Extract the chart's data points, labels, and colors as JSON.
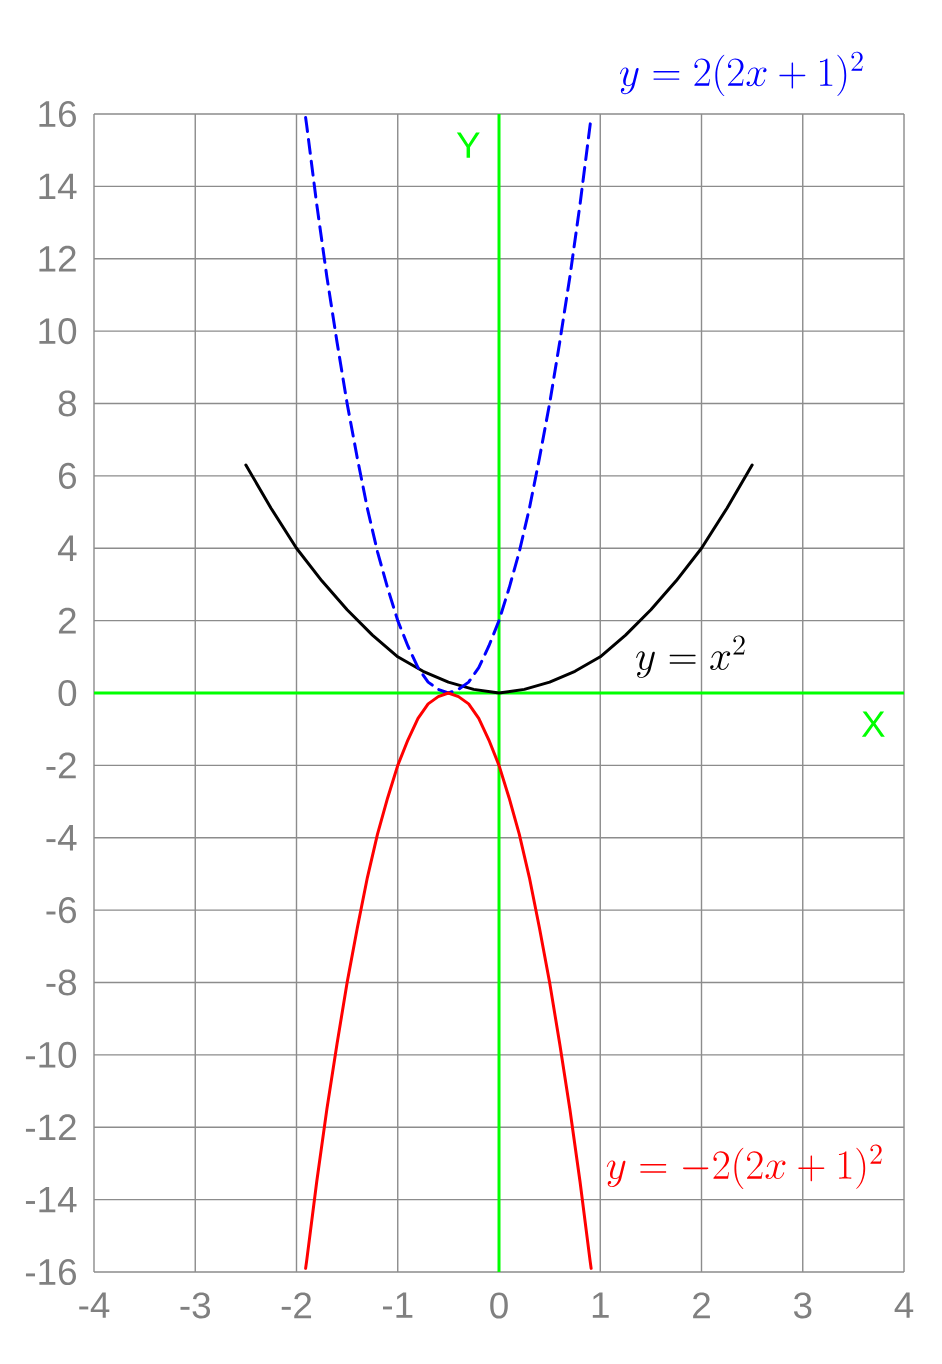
{
  "chart_data": {
    "type": "line",
    "series": [
      {
        "name": "y = x^2",
        "color": "#000000",
        "x": [
          -2.5,
          -2.25,
          -2,
          -1.75,
          -1.5,
          -1.25,
          -1,
          -0.75,
          -0.5,
          -0.25,
          0,
          0.25,
          0.5,
          0.75,
          1,
          1.25,
          1.5,
          1.75,
          2,
          2.25,
          2.5
        ],
        "values": [
          6.3,
          5.1,
          4,
          3.1,
          2.3,
          1.6,
          1,
          0.6,
          0.3,
          0.1,
          0,
          0.1,
          0.3,
          0.6,
          1,
          1.6,
          2.3,
          3.1,
          4,
          5.1,
          6.3
        ]
      },
      {
        "name": "y = 2(2x+1)^2",
        "color": "#0000ff",
        "line_style": "dashed",
        "x": [
          -1.91,
          -1.9,
          -1.8,
          -1.7,
          -1.6,
          -1.5,
          -1.4,
          -1.3,
          -1.2,
          -1.1,
          -1,
          -0.9,
          -0.8,
          -0.7,
          -0.6,
          -0.5,
          -0.4,
          -0.3,
          -0.2,
          -0.1,
          0,
          0.1,
          0.2,
          0.3,
          0.4,
          0.5,
          0.6,
          0.7,
          0.8,
          0.9,
          0.91
        ],
        "values": [
          15.9,
          15.7,
          13.5,
          11.5,
          9.7,
          8,
          6.5,
          5.1,
          3.9,
          2.9,
          2,
          1.3,
          0.7,
          0.3,
          0.1,
          0,
          0.1,
          0.3,
          0.7,
          1.3,
          2,
          2.9,
          3.9,
          5.1,
          6.5,
          8,
          9.7,
          11.5,
          13.5,
          15.7,
          15.9
        ]
      },
      {
        "name": "y = -2(2x+1)^2",
        "color": "#ff0000",
        "x": [
          -1.91,
          -1.9,
          -1.8,
          -1.7,
          -1.6,
          -1.5,
          -1.4,
          -1.3,
          -1.2,
          -1.1,
          -1,
          -0.9,
          -0.8,
          -0.7,
          -0.6,
          -0.5,
          -0.4,
          -0.3,
          -0.2,
          -0.1,
          0,
          0.1,
          0.2,
          0.3,
          0.4,
          0.5,
          0.6,
          0.7,
          0.8,
          0.9,
          0.91
        ],
        "values": [
          -15.9,
          -15.7,
          -13.5,
          -11.5,
          -9.7,
          -8,
          -6.5,
          -5.1,
          -3.9,
          -2.9,
          -2,
          -1.3,
          -0.7,
          -0.3,
          -0.1,
          0,
          -0.1,
          -0.3,
          -0.7,
          -1.3,
          -2,
          -2.9,
          -3.9,
          -5.1,
          -6.5,
          -8,
          -9.7,
          -11.5,
          -13.5,
          -15.7,
          -15.9
        ]
      }
    ],
    "xlabel": "X",
    "ylabel": "Y",
    "xlim": [
      -4,
      4
    ],
    "ylim": [
      -16,
      16
    ],
    "xticks": [
      -4,
      -3,
      -2,
      -1,
      0,
      1,
      2,
      3,
      4
    ],
    "yticks": [
      -16,
      -14,
      -12,
      -10,
      -8,
      -6,
      -4,
      -2,
      0,
      2,
      4,
      6,
      8,
      10,
      12,
      14,
      16
    ],
    "grid": true,
    "line_style": "solid"
  }
}
